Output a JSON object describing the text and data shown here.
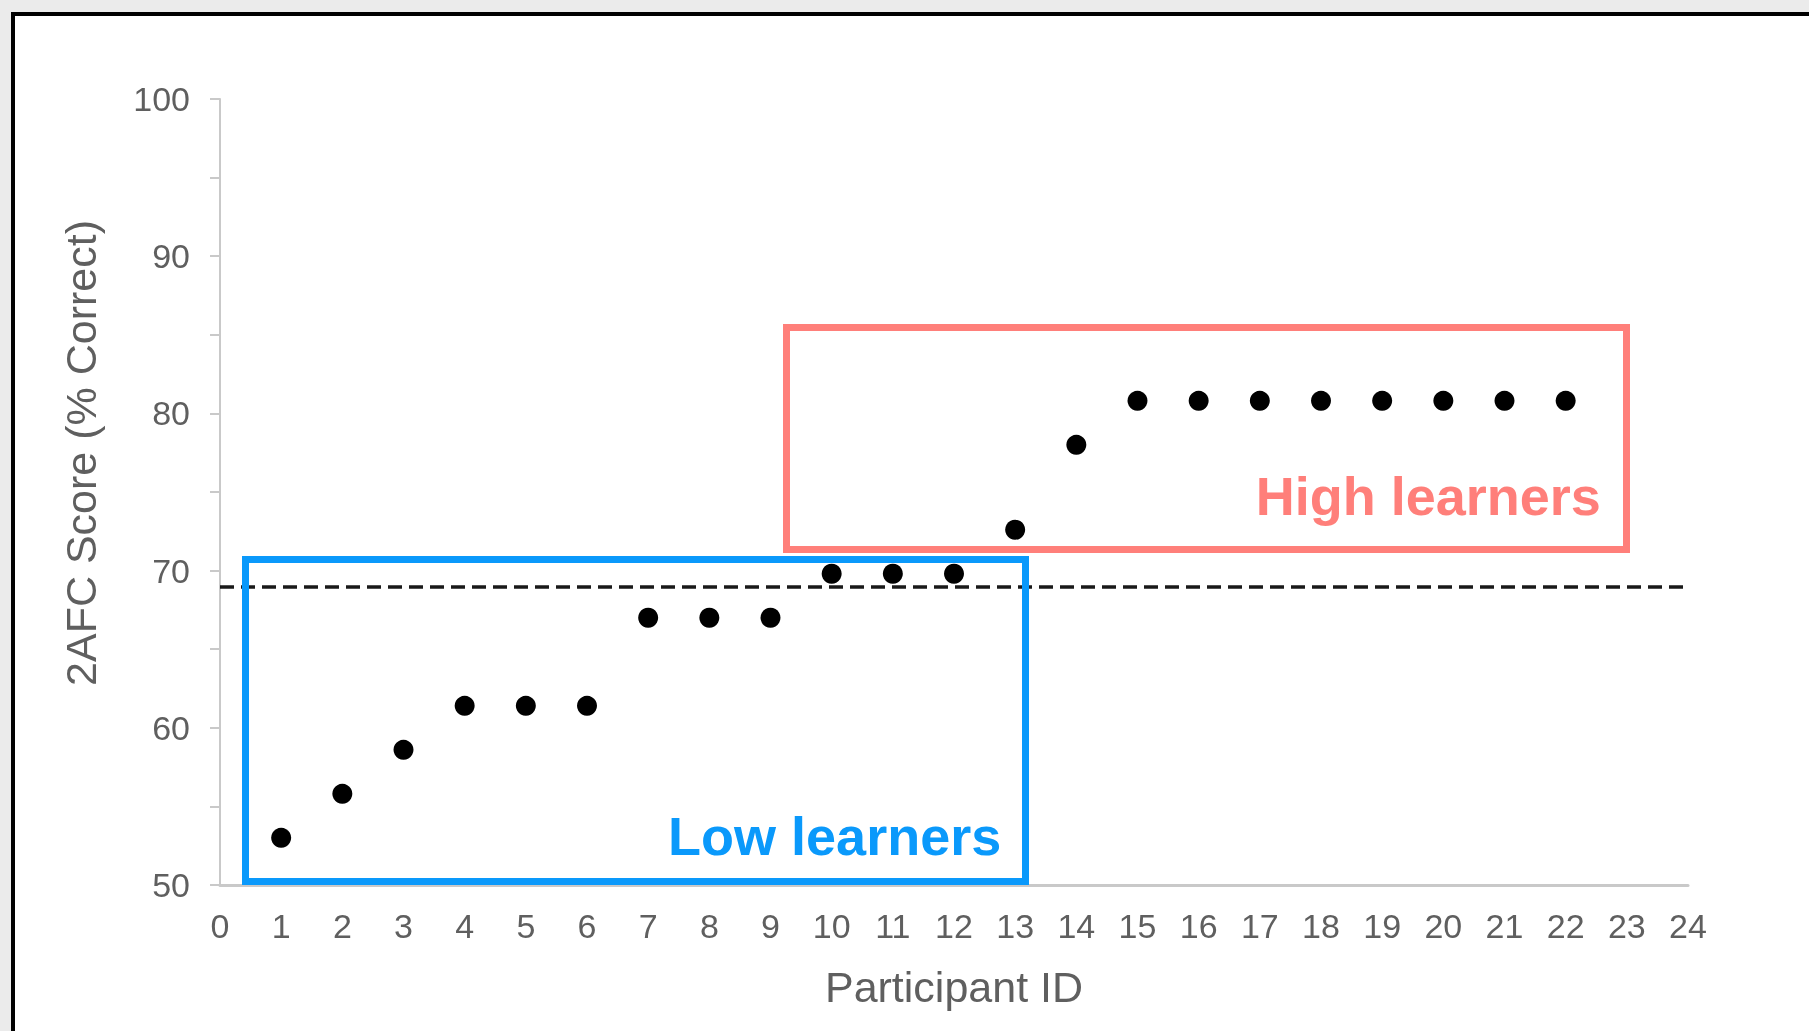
{
  "chart_data": {
    "type": "scatter",
    "xlabel": "Participant ID",
    "ylabel": "2AFC Score (% Correct)",
    "x": [
      1,
      2,
      3,
      4,
      5,
      6,
      7,
      8,
      9,
      10,
      11,
      12,
      13,
      14,
      15,
      16,
      17,
      18,
      19,
      20,
      21,
      22
    ],
    "series": [
      {
        "color": "#000000",
        "values": [
          53,
          55.8,
          58.6,
          61.4,
          61.4,
          61.4,
          67,
          67,
          67,
          69.8,
          69.8,
          69.8,
          72.6,
          78,
          80.8,
          80.8,
          80.8,
          80.8,
          80.8,
          80.8,
          80.8,
          80.8
        ]
      }
    ],
    "xlim": [
      0,
      24
    ],
    "xticks": [
      0,
      1,
      2,
      3,
      4,
      5,
      6,
      7,
      8,
      9,
      10,
      11,
      12,
      13,
      14,
      15,
      16,
      17,
      18,
      19,
      20,
      21,
      22,
      23,
      24
    ],
    "ylim": [
      50,
      100
    ],
    "yticks": [
      50,
      {
        "value": 55,
        "label": null
      },
      60,
      {
        "value": 65,
        "label": null
      },
      70,
      {
        "value": 75,
        "label": null
      },
      80,
      {
        "value": 85,
        "label": null
      },
      90,
      {
        "value": 95,
        "label": null
      },
      100
    ],
    "marker": "circle",
    "ref_lines": [
      {
        "axis": "y",
        "value": 69,
        "color": "#000000",
        "line_style": "dashed"
      }
    ],
    "annotations": [
      "Low learners",
      "High learners"
    ]
  }
}
